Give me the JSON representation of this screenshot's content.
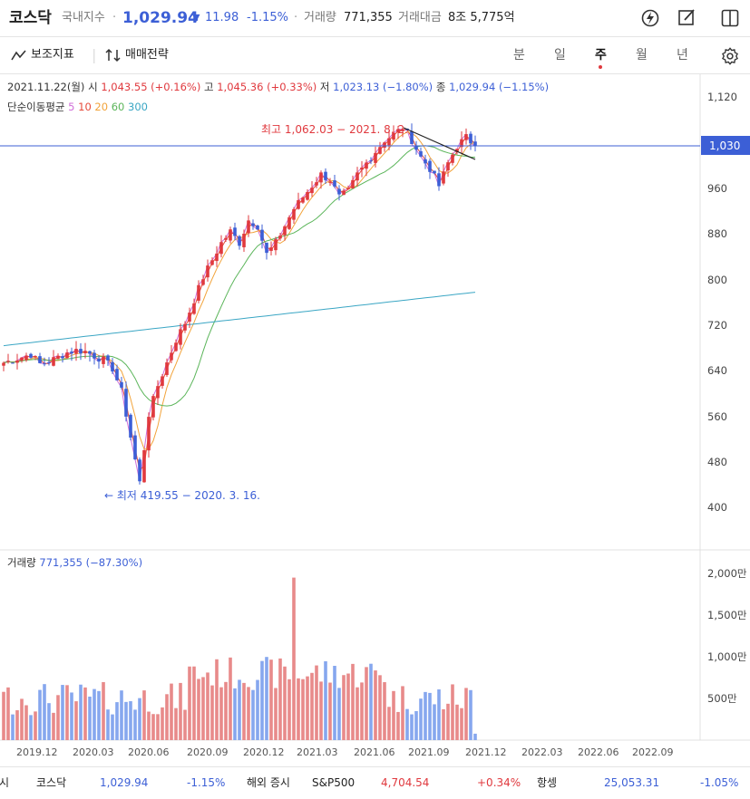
{
  "header": {
    "title": "코스닥",
    "category": "국내지수",
    "price": "1,029.94",
    "change_arrow": "▼",
    "change": "11.98",
    "change_pct": "-1.15%",
    "volume_label": "거래량",
    "volume": "771,355",
    "amount_label": "거래대금",
    "amount": "8조 5,775억"
  },
  "toolbar": {
    "indicator_label": "보조지표",
    "strategy_label": "매매전략",
    "periods": [
      "분",
      "일",
      "주",
      "월",
      "년"
    ],
    "active_period": "주"
  },
  "ohlc": {
    "date": "2021.11.22(월)",
    "open_label": "시",
    "open": "1,043.55 (+0.16%)",
    "high_label": "고",
    "high": "1,045.36 (+0.33%)",
    "low_label": "저",
    "low": "1,023.13 (−1.80%)",
    "close_label": "종",
    "close": "1,029.94 (−1.15%)"
  },
  "ma_legend": {
    "label": "단순이동평균",
    "periods": [
      "5",
      "10",
      "20",
      "60",
      "300"
    ]
  },
  "annotations": {
    "high": "최고 1,062.03 − 2021. 8. 2.",
    "low": "← 최저 419.55 − 2020. 3. 16."
  },
  "price_axis": {
    "ticks": [
      "1,120",
      "1,030",
      "960",
      "880",
      "800",
      "720",
      "640",
      "560",
      "480",
      "400"
    ],
    "current": "1,030"
  },
  "volume_panel": {
    "label": "거래량",
    "value": "771,355 (−87.30%)",
    "ticks": [
      "2,000만",
      "1,500만",
      "1,000만",
      "500만"
    ]
  },
  "time_axis": {
    "ticks": [
      "2019.12",
      "2020.03",
      "2020.06",
      "2020.09",
      "2020.12",
      "2021.03",
      "2021.06",
      "2021.09",
      "2021.12",
      "2022.03",
      "2022.06",
      "2022.09"
    ]
  },
  "ticker": [
    {
      "name": "증시",
      "value": "",
      "change": ""
    },
    {
      "name": "코스닥",
      "value": "1,029.94",
      "change": "-1.15%"
    },
    {
      "name": "해외 증시",
      "value": "",
      "change": ""
    },
    {
      "name": "S&P500",
      "value": "4,704.54",
      "change": "+0.34%"
    },
    {
      "name": "항셍",
      "value": "25,053.31",
      "change": "-1.05%"
    }
  ],
  "colors": {
    "up": "#e0393e",
    "down": "#3c5fd6",
    "ma5": "#d06fd8",
    "ma10": "#e64a3a",
    "ma20": "#f2a33a",
    "ma60": "#5bb55a",
    "ma300": "#3aa6c4"
  },
  "chart_data": {
    "type": "candlestick",
    "x_ticks": [
      "2019.12",
      "2020.03",
      "2020.06",
      "2020.09",
      "2020.12",
      "2021.03",
      "2021.06",
      "2021.09",
      "2021.12",
      "2022.03",
      "2022.06",
      "2022.09"
    ],
    "y_range": [
      380,
      1150
    ],
    "last": {
      "date": "2021.11.22",
      "open": 1043.55,
      "high": 1045.36,
      "low": 1023.13,
      "close": 1029.94,
      "volume": 771355
    },
    "extremes": {
      "high": 1062.03,
      "high_date": "2021.8.2",
      "low": 419.55,
      "low_date": "2020.3.16"
    },
    "close_path": [
      650,
      655,
      660,
      665,
      648,
      652,
      660,
      668,
      672,
      670,
      662,
      655,
      640,
      600,
      520,
      440,
      560,
      610,
      650,
      690,
      720,
      760,
      800,
      830,
      860,
      880,
      860,
      900,
      890,
      840,
      860,
      890,
      920,
      940,
      960,
      980,
      970,
      940,
      950,
      980,
      1000,
      1020,
      1040,
      1050,
      1062,
      1040,
      1010,
      990,
      960,
      1000,
      1030,
      1045,
      1030
    ],
    "volume_scale_max": 20000000
  }
}
